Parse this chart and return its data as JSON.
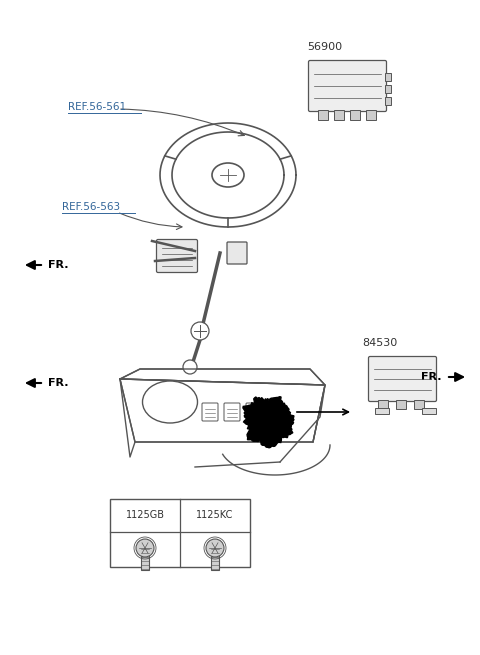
{
  "bg_color": "#ffffff",
  "line_color": "#555555",
  "text_color": "#333333",
  "label_56900": "56900",
  "label_ref561": "REF.56-561",
  "label_ref563": "REF.56-563",
  "label_84530": "84530",
  "label_fr": "FR.",
  "label_1125gb": "1125GB",
  "label_1125kc": "1125KC",
  "ref_color": "#336699",
  "arrow_color": "#333333"
}
